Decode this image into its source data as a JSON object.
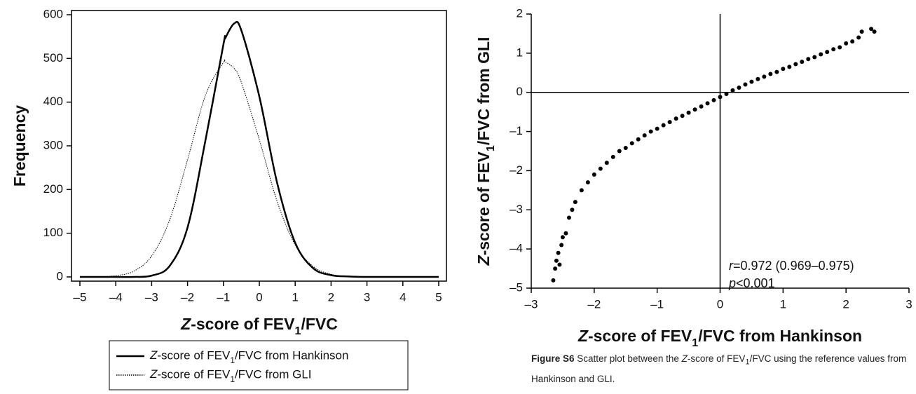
{
  "chart_data": [
    {
      "type": "line",
      "xlabel": "Z-score of FEV1/FVC",
      "ylabel": "Frequency",
      "x": [
        -5,
        -4.5,
        -4,
        -3.5,
        -3,
        -2.5,
        -2,
        -1.5,
        -1,
        -0.95,
        -0.7,
        -0.5,
        0,
        0.5,
        1,
        1.5,
        2,
        2.5,
        3,
        3.5,
        4,
        4.5,
        5
      ],
      "series": [
        {
          "name": "Z-score of FEV1/FVC from Hankinson",
          "color": "#000000",
          "line_style": "solid",
          "values": [
            0,
            0,
            0,
            0,
            3,
            25,
            113,
            313,
            532,
            546,
            580,
            564,
            413,
            214,
            78,
            20,
            4,
            1,
            0,
            0,
            0,
            0,
            0
          ]
        },
        {
          "name": "Z-score of FEV1/FVC from GLI",
          "color": "#000000",
          "line_style": "dotted",
          "values": [
            0,
            0,
            3,
            13,
            48,
            130,
            268,
            416,
            491,
            492,
            477,
            445,
            314,
            172,
            73,
            24,
            6,
            1,
            0,
            0,
            0,
            0,
            0
          ]
        }
      ],
      "xlim": [
        -5,
        5
      ],
      "xticks": [
        {
          "value": -5,
          "label": "–5"
        },
        {
          "value": -4,
          "label": "–4"
        },
        {
          "value": -3,
          "label": "–3"
        },
        {
          "value": -2,
          "label": "–2"
        },
        {
          "value": -1,
          "label": "–1"
        },
        0,
        1,
        2,
        3,
        4,
        5
      ],
      "ylim": [
        0,
        600
      ],
      "yticks": [
        0,
        100,
        200,
        300,
        400,
        500,
        600
      ],
      "legend": "below"
    },
    {
      "type": "scatter",
      "xlabel": "Z-score of FEV1/FVC from Hankinson",
      "ylabel": "Z-score of FEV1/FVC from GLI",
      "color": "#000000",
      "x": [
        -2.65,
        -2.62,
        -2.6,
        -2.57,
        -2.55,
        -2.52,
        -2.5,
        -2.45,
        -2.4,
        -2.35,
        -2.3,
        -2.2,
        -2.1,
        -2.0,
        -1.9,
        -1.8,
        -1.7,
        -1.6,
        -1.5,
        -1.4,
        -1.3,
        -1.2,
        -1.1,
        -1.0,
        -0.9,
        -0.8,
        -0.7,
        -0.6,
        -0.5,
        -0.4,
        -0.3,
        -0.2,
        -0.1,
        0,
        0.1,
        0.2,
        0.3,
        0.4,
        0.5,
        0.6,
        0.7,
        0.8,
        0.9,
        1.0,
        1.1,
        1.2,
        1.3,
        1.4,
        1.5,
        1.6,
        1.7,
        1.8,
        1.9,
        2.0,
        2.1,
        2.2,
        2.25,
        2.4,
        2.45
      ],
      "y": [
        -4.8,
        -4.5,
        -4.3,
        -4.1,
        -4.4,
        -3.9,
        -3.7,
        -3.6,
        -3.2,
        -3.0,
        -2.8,
        -2.5,
        -2.3,
        -2.1,
        -1.95,
        -1.8,
        -1.65,
        -1.5,
        -1.42,
        -1.3,
        -1.2,
        -1.1,
        -1.0,
        -0.93,
        -0.84,
        -0.76,
        -0.67,
        -0.6,
        -0.52,
        -0.44,
        -0.36,
        -0.28,
        -0.2,
        -0.12,
        -0.04,
        0.05,
        0.12,
        0.2,
        0.27,
        0.34,
        0.4,
        0.47,
        0.52,
        0.6,
        0.65,
        0.72,
        0.78,
        0.85,
        0.9,
        0.97,
        1.03,
        1.1,
        1.15,
        1.25,
        1.3,
        1.4,
        1.55,
        1.62,
        1.55
      ],
      "xlim": [
        -3,
        3
      ],
      "xticks": [
        {
          "value": -3,
          "label": "–3"
        },
        {
          "value": -2,
          "label": "–2"
        },
        {
          "value": -1,
          "label": "–1"
        },
        0,
        1,
        2,
        3
      ],
      "ylim": [
        -5,
        2
      ],
      "yticks": [
        {
          "value": -5,
          "label": "–5"
        },
        {
          "value": -4,
          "label": "–4"
        },
        {
          "value": -3,
          "label": "–3"
        },
        {
          "value": -2,
          "label": "–2"
        },
        {
          "value": -1,
          "label": "–1"
        },
        0,
        1,
        2
      ],
      "zero_lines": true,
      "annotations": [
        "r=0.972 (0.969–0.975)",
        "p<0.001"
      ]
    }
  ],
  "caption": {
    "label": "Figure S6",
    "text": "Scatter plot between the Z-score of FEV1/FVC using the reference values from Hankinson and GLI."
  }
}
